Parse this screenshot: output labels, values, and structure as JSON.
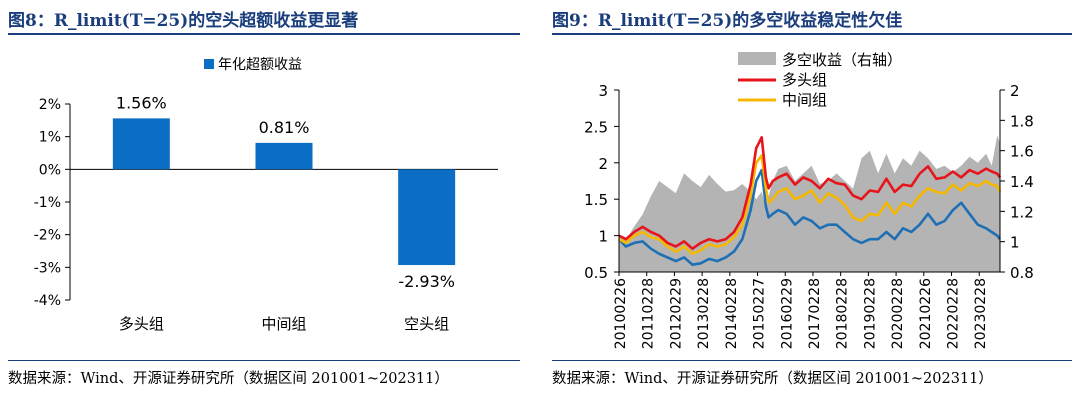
{
  "left_panel": {
    "title": "图8：R_limit(T=25)的空头超额收益更显著",
    "source": "数据来源：Wind、开源证券研究所（数据区间 201001~202311）"
  },
  "right_panel": {
    "title": "图9：R_limit(T=25)的多空收益稳定性欠佳",
    "source": "数据来源：Wind、开源证券研究所（数据区间 201001~202311）"
  },
  "chart_data": [
    {
      "type": "bar",
      "categories": [
        "多头组",
        "中间组",
        "空头组"
      ],
      "values": [
        1.56,
        0.81,
        -2.93
      ],
      "data_labels": [
        "1.56%",
        "0.81%",
        "-2.93%"
      ],
      "legend": [
        "年化超额收益"
      ],
      "legend_position": "top",
      "ylim": [
        -4,
        2
      ],
      "yticks": [
        "2%",
        "1%",
        "0%",
        "-1%",
        "-2%",
        "-3%",
        "-4%"
      ],
      "colors": {
        "bar": "#0b6ec4"
      }
    },
    {
      "type": "line",
      "x_labels": [
        "20100226",
        "20110228",
        "20120229",
        "20130228",
        "20140228",
        "20150227",
        "20160229",
        "20170228",
        "20180228",
        "20190228",
        "20200228",
        "20210226",
        "20220228",
        "20230228"
      ],
      "x_range": [
        2010.15,
        2023.9
      ],
      "ylim_left": [
        0.5,
        3
      ],
      "yticks_left": [
        "0.5",
        "1",
        "1.5",
        "2",
        "2.5",
        "3"
      ],
      "ylim_right": [
        0.8,
        2
      ],
      "yticks_right": [
        "0.8",
        "1",
        "1.2",
        "1.4",
        "1.6",
        "1.8",
        "2"
      ],
      "legend": [
        "多空收益（右轴）",
        "多头组",
        "中间组"
      ],
      "legend_position": "top-left",
      "colors": {
        "area": "#b4b4b4",
        "long": "#e8141b",
        "mid": "#f7b800",
        "short": "#1f6fb5"
      },
      "series": [
        {
          "name": "多空收益（右轴）",
          "axis": "right",
          "kind": "area",
          "x": [
            2010.15,
            2010.4,
            2010.7,
            2011.0,
            2011.3,
            2011.6,
            2011.9,
            2012.2,
            2012.5,
            2012.8,
            2013.1,
            2013.4,
            2013.7,
            2014.0,
            2014.3,
            2014.6,
            2014.9,
            2015.1,
            2015.3,
            2015.45,
            2015.55,
            2015.7,
            2015.9,
            2016.2,
            2016.5,
            2016.8,
            2017.1,
            2017.4,
            2017.7,
            2018.0,
            2018.3,
            2018.6,
            2018.9,
            2019.2,
            2019.5,
            2019.8,
            2020.1,
            2020.4,
            2020.7,
            2021.0,
            2021.3,
            2021.6,
            2021.9,
            2022.2,
            2022.5,
            2022.8,
            2023.1,
            2023.4,
            2023.6,
            2023.8,
            2023.9
          ],
          "values": [
            1.04,
            1.01,
            1.1,
            1.18,
            1.3,
            1.4,
            1.36,
            1.32,
            1.45,
            1.4,
            1.36,
            1.44,
            1.38,
            1.33,
            1.34,
            1.38,
            1.33,
            1.28,
            1.33,
            1.22,
            1.3,
            1.4,
            1.48,
            1.5,
            1.4,
            1.45,
            1.5,
            1.38,
            1.4,
            1.45,
            1.4,
            1.35,
            1.55,
            1.6,
            1.45,
            1.58,
            1.45,
            1.55,
            1.5,
            1.6,
            1.55,
            1.48,
            1.5,
            1.46,
            1.5,
            1.56,
            1.52,
            1.58,
            1.5,
            1.7,
            1.65
          ]
        },
        {
          "name": "多头组",
          "axis": "left",
          "kind": "line",
          "x": [
            2010.15,
            2010.4,
            2010.7,
            2011.0,
            2011.3,
            2011.6,
            2011.9,
            2012.2,
            2012.5,
            2012.8,
            2013.1,
            2013.4,
            2013.7,
            2014.0,
            2014.3,
            2014.6,
            2014.9,
            2015.1,
            2015.3,
            2015.45,
            2015.55,
            2015.7,
            2015.9,
            2016.2,
            2016.5,
            2016.8,
            2017.1,
            2017.4,
            2017.7,
            2018.0,
            2018.3,
            2018.6,
            2018.9,
            2019.2,
            2019.5,
            2019.8,
            2020.1,
            2020.4,
            2020.7,
            2021.0,
            2021.3,
            2021.6,
            2021.9,
            2022.2,
            2022.5,
            2022.8,
            2023.1,
            2023.4,
            2023.6,
            2023.8,
            2023.9
          ],
          "values": [
            1.0,
            0.95,
            1.05,
            1.12,
            1.05,
            1.0,
            0.9,
            0.85,
            0.92,
            0.82,
            0.9,
            0.95,
            0.92,
            0.95,
            1.05,
            1.25,
            1.7,
            2.2,
            2.35,
            1.8,
            1.65,
            1.75,
            1.8,
            1.85,
            1.7,
            1.8,
            1.75,
            1.65,
            1.78,
            1.72,
            1.7,
            1.55,
            1.5,
            1.62,
            1.6,
            1.78,
            1.6,
            1.7,
            1.68,
            1.85,
            1.95,
            1.78,
            1.8,
            1.88,
            1.8,
            1.9,
            1.85,
            1.92,
            1.88,
            1.85,
            1.8
          ]
        },
        {
          "name": "中间组",
          "axis": "left",
          "kind": "line",
          "x": [
            2010.15,
            2010.4,
            2010.7,
            2011.0,
            2011.3,
            2011.6,
            2011.9,
            2012.2,
            2012.5,
            2012.8,
            2013.1,
            2013.4,
            2013.7,
            2014.0,
            2014.3,
            2014.6,
            2014.9,
            2015.1,
            2015.3,
            2015.45,
            2015.55,
            2015.7,
            2015.9,
            2016.2,
            2016.5,
            2016.8,
            2017.1,
            2017.4,
            2017.7,
            2018.0,
            2018.3,
            2018.6,
            2018.9,
            2019.2,
            2019.5,
            2019.8,
            2020.1,
            2020.4,
            2020.7,
            2021.0,
            2021.3,
            2021.6,
            2021.9,
            2022.2,
            2022.5,
            2022.8,
            2023.1,
            2023.4,
            2023.6,
            2023.8,
            2023.9
          ],
          "values": [
            0.95,
            0.9,
            1.0,
            1.05,
            0.98,
            0.95,
            0.85,
            0.78,
            0.85,
            0.75,
            0.8,
            0.88,
            0.85,
            0.88,
            0.98,
            1.15,
            1.55,
            2.0,
            2.1,
            1.65,
            1.45,
            1.5,
            1.6,
            1.65,
            1.5,
            1.55,
            1.62,
            1.45,
            1.58,
            1.52,
            1.42,
            1.25,
            1.2,
            1.3,
            1.28,
            1.45,
            1.3,
            1.45,
            1.4,
            1.55,
            1.65,
            1.6,
            1.58,
            1.7,
            1.62,
            1.72,
            1.68,
            1.75,
            1.7,
            1.68,
            1.6
          ]
        },
        {
          "name": "空头组",
          "axis": "left",
          "kind": "line",
          "x": [
            2010.15,
            2010.4,
            2010.7,
            2011.0,
            2011.3,
            2011.6,
            2011.9,
            2012.2,
            2012.5,
            2012.8,
            2013.1,
            2013.4,
            2013.7,
            2014.0,
            2014.3,
            2014.6,
            2014.9,
            2015.1,
            2015.3,
            2015.45,
            2015.55,
            2015.7,
            2015.9,
            2016.2,
            2016.5,
            2016.8,
            2017.1,
            2017.4,
            2017.7,
            2018.0,
            2018.3,
            2018.6,
            2018.9,
            2019.2,
            2019.5,
            2019.8,
            2020.1,
            2020.4,
            2020.7,
            2021.0,
            2021.3,
            2021.6,
            2021.9,
            2022.2,
            2022.5,
            2022.8,
            2023.1,
            2023.4,
            2023.6,
            2023.8,
            2023.9
          ],
          "values": [
            0.95,
            0.85,
            0.9,
            0.92,
            0.82,
            0.75,
            0.7,
            0.65,
            0.7,
            0.6,
            0.62,
            0.68,
            0.65,
            0.7,
            0.78,
            0.95,
            1.35,
            1.75,
            1.9,
            1.4,
            1.25,
            1.3,
            1.35,
            1.3,
            1.15,
            1.25,
            1.2,
            1.1,
            1.15,
            1.15,
            1.05,
            0.95,
            0.9,
            0.95,
            0.95,
            1.05,
            0.95,
            1.1,
            1.05,
            1.15,
            1.3,
            1.15,
            1.2,
            1.35,
            1.45,
            1.3,
            1.15,
            1.1,
            1.05,
            1.0,
            0.95
          ]
        }
      ]
    }
  ]
}
